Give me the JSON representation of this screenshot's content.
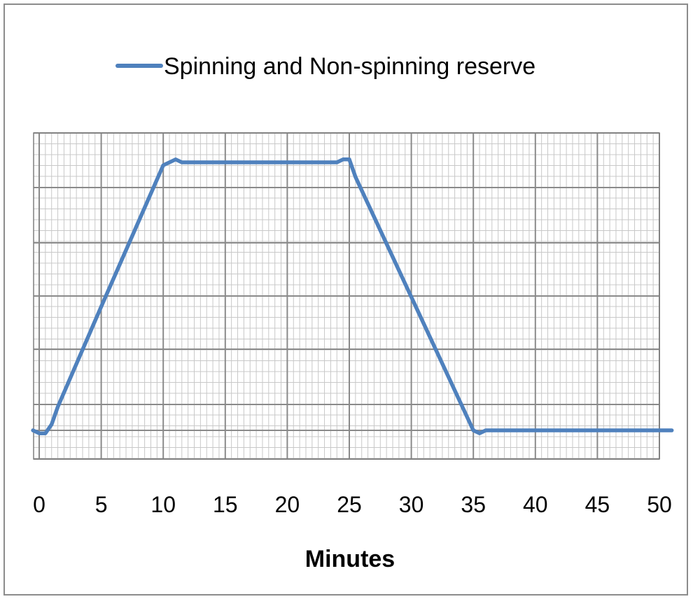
{
  "chart_data": {
    "type": "line",
    "title": "",
    "xlabel": "Minutes",
    "ylabel": "",
    "xlim": [
      0,
      50
    ],
    "ylim": [
      0,
      1
    ],
    "grid": true,
    "legend_position": "top",
    "x_tick_labels": [
      "0",
      "5",
      "10",
      "15",
      "20",
      "25",
      "30",
      "35",
      "40",
      "45",
      "50"
    ],
    "series": [
      {
        "name": "Spinning and Non-spinning reserve",
        "color": "#4f81bd",
        "x": [
          -0.5,
          0,
          0.5,
          1,
          1.5,
          5,
          10,
          11,
          11.5,
          12,
          24,
          24.5,
          25,
          25.5,
          35,
          35.5,
          36,
          51
        ],
        "y": [
          0,
          -0.01,
          -0.01,
          0.02,
          0.08,
          0.42,
          0.9,
          0.92,
          0.91,
          0.91,
          0.91,
          0.92,
          0.92,
          0.86,
          0,
          -0.01,
          0,
          0
        ]
      }
    ]
  }
}
